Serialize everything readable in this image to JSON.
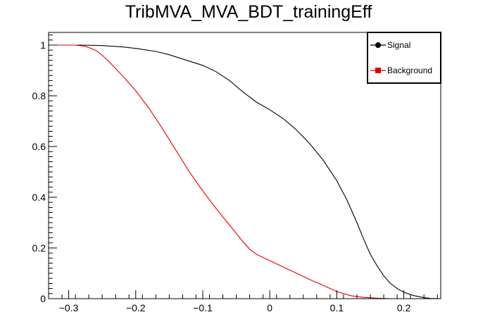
{
  "chart_data": {
    "type": "line",
    "title": "TribMVA_MVA_BDT_trainingEff",
    "xlabel": "",
    "ylabel": "",
    "xlim": [
      -0.33,
      0.255
    ],
    "ylim": [
      0,
      1.05
    ],
    "x_ticks": [
      -0.3,
      -0.2,
      -0.1,
      0,
      0.1,
      0.2
    ],
    "x_tick_labels": [
      "−0.3",
      "−0.2",
      "−0.1",
      "0",
      "0.1",
      "0.2"
    ],
    "y_ticks": [
      0,
      0.2,
      0.4,
      0.6,
      0.8,
      1
    ],
    "y_tick_labels": [
      "0",
      "0.2",
      "0.4",
      "0.6",
      "0.8",
      "1"
    ],
    "grid": false,
    "legend_position": "top-right",
    "series": [
      {
        "name": "Signal",
        "color": "#000000",
        "marker": "circle",
        "points": [
          [
            -0.33,
            1.0
          ],
          [
            -0.28,
            1.0
          ],
          [
            -0.25,
            0.998
          ],
          [
            -0.22,
            0.993
          ],
          [
            -0.2,
            0.987
          ],
          [
            -0.17,
            0.975
          ],
          [
            -0.15,
            0.962
          ],
          [
            -0.13,
            0.945
          ],
          [
            -0.1,
            0.92
          ],
          [
            -0.08,
            0.895
          ],
          [
            -0.06,
            0.86
          ],
          [
            -0.04,
            0.815
          ],
          [
            -0.02,
            0.775
          ],
          [
            0.0,
            0.745
          ],
          [
            0.02,
            0.71
          ],
          [
            0.04,
            0.665
          ],
          [
            0.06,
            0.61
          ],
          [
            0.08,
            0.545
          ],
          [
            0.1,
            0.465
          ],
          [
            0.115,
            0.39
          ],
          [
            0.13,
            0.3
          ],
          [
            0.14,
            0.235
          ],
          [
            0.15,
            0.175
          ],
          [
            0.16,
            0.13
          ],
          [
            0.17,
            0.09
          ],
          [
            0.18,
            0.06
          ],
          [
            0.19,
            0.04
          ],
          [
            0.2,
            0.025
          ],
          [
            0.215,
            0.012
          ],
          [
            0.23,
            0.004
          ],
          [
            0.24,
            0.001
          ],
          [
            0.255,
            0.0
          ]
        ]
      },
      {
        "name": "Background",
        "color": "#e00000",
        "marker": "square",
        "points": [
          [
            -0.33,
            1.0
          ],
          [
            -0.29,
            1.0
          ],
          [
            -0.275,
            0.995
          ],
          [
            -0.26,
            0.98
          ],
          [
            -0.25,
            0.96
          ],
          [
            -0.24,
            0.935
          ],
          [
            -0.22,
            0.88
          ],
          [
            -0.2,
            0.82
          ],
          [
            -0.18,
            0.75
          ],
          [
            -0.16,
            0.67
          ],
          [
            -0.14,
            0.585
          ],
          [
            -0.12,
            0.5
          ],
          [
            -0.1,
            0.425
          ],
          [
            -0.08,
            0.355
          ],
          [
            -0.06,
            0.29
          ],
          [
            -0.04,
            0.225
          ],
          [
            -0.03,
            0.195
          ],
          [
            -0.02,
            0.175
          ],
          [
            0.0,
            0.15
          ],
          [
            0.02,
            0.125
          ],
          [
            0.04,
            0.1
          ],
          [
            0.06,
            0.075
          ],
          [
            0.08,
            0.052
          ],
          [
            0.1,
            0.028
          ],
          [
            0.12,
            0.012
          ],
          [
            0.14,
            0.005
          ],
          [
            0.16,
            0.002
          ],
          [
            0.18,
            0.0
          ],
          [
            0.255,
            0.0
          ]
        ]
      }
    ]
  }
}
